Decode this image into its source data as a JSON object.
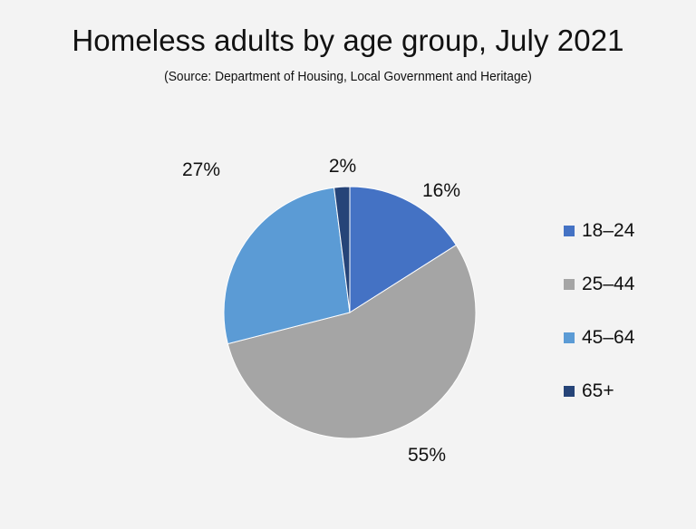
{
  "chart_data": {
    "type": "pie",
    "title": "Homeless adults by age group, July 2021",
    "subtitle": "(Source: Department of Housing, Local Government and Heritage)",
    "categories": [
      "18–24",
      "25–44",
      "45–64",
      "65+"
    ],
    "values": [
      16,
      55,
      27,
      2
    ],
    "data_labels": [
      "16%",
      "55%",
      "27%",
      "2%"
    ],
    "colors": [
      "#4472c4",
      "#a5a5a5",
      "#5b9bd5",
      "#264478"
    ],
    "start_angle": "12 o'clock, clockwise",
    "legend_position": "right"
  }
}
